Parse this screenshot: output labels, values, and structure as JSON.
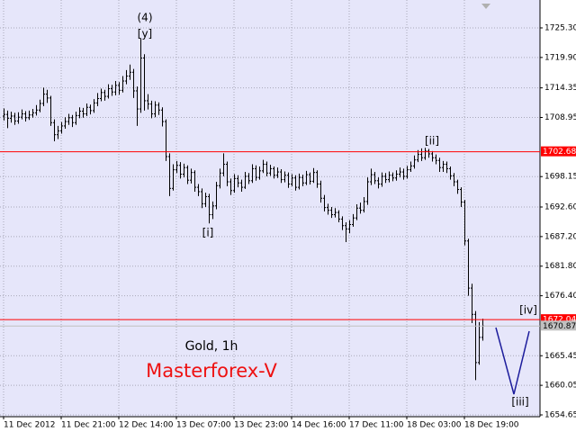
{
  "chart_data": {
    "type": "ohlc",
    "symbol_label": "Gold, 1h",
    "brand": "Masterforex-V",
    "annotations": [
      "(4)",
      "[y]",
      "[i]",
      "[ii]",
      "[iii]",
      "[iv]"
    ],
    "ylim": [
      1654.32,
      1730.39
    ],
    "yticks": [
      {
        "value": 1725.3,
        "label": "1725.30"
      },
      {
        "value": 1719.9,
        "label": "1719.90"
      },
      {
        "value": 1714.35,
        "label": "1714.35"
      },
      {
        "value": 1708.95,
        "label": "1708.95"
      },
      {
        "value": 1698.15,
        "label": "1698.15"
      },
      {
        "value": 1692.6,
        "label": "1692.60"
      },
      {
        "value": 1687.2,
        "label": "1687.20"
      },
      {
        "value": 1681.8,
        "label": "1681.80"
      },
      {
        "value": 1676.4,
        "label": "1676.40"
      },
      {
        "value": 1665.45,
        "label": "1665.45"
      },
      {
        "value": 1660.05,
        "label": "1660.05"
      },
      {
        "value": 1654.65,
        "label": "1654.65"
      }
    ],
    "grid": true,
    "color": "#000000",
    "price_lines": [
      {
        "value": 1702.68,
        "color": "#ff0000"
      },
      {
        "value": 1672.04,
        "color": "#ff0000"
      },
      {
        "value": 1670.87,
        "color": "#c0c0c0"
      }
    ],
    "categories": [
      "11 Dec 2012",
      null,
      null,
      null,
      null,
      null,
      null,
      null,
      null,
      null,
      null,
      null,
      null,
      null,
      null,
      null,
      "11 Dec 21:00",
      null,
      null,
      null,
      null,
      null,
      null,
      null,
      null,
      null,
      null,
      null,
      null,
      null,
      null,
      null,
      "12 Dec 14:00",
      null,
      null,
      null,
      null,
      null,
      null,
      null,
      null,
      null,
      null,
      null,
      null,
      null,
      null,
      null,
      "13 Dec 07:00",
      null,
      null,
      null,
      null,
      null,
      null,
      null,
      null,
      null,
      null,
      null,
      null,
      null,
      null,
      null,
      "13 Dec 23:00",
      null,
      null,
      null,
      null,
      null,
      null,
      null,
      null,
      null,
      null,
      null,
      null,
      null,
      null,
      null,
      "14 Dec 16:00",
      null,
      null,
      null,
      null,
      null,
      null,
      null,
      null,
      null,
      null,
      null,
      null,
      null,
      null,
      null,
      "17 Dec 11:00",
      null,
      null,
      null,
      null,
      null,
      null,
      null,
      null,
      null,
      null,
      null,
      null,
      null,
      null,
      null,
      "18 Dec 03:00",
      null,
      null,
      null,
      null,
      null,
      null,
      null,
      null,
      null,
      null,
      null,
      null,
      null,
      null,
      null,
      "18 Dec 19:00",
      null,
      null,
      null,
      null,
      null
    ],
    "open": [
      1709.2,
      1709.5,
      1708.8,
      1709.2,
      1708.3,
      1709.0,
      1709.6,
      1708.9,
      1709.4,
      1709.8,
      1710.3,
      1711.5,
      1713.2,
      1712.5,
      1708.0,
      1705.8,
      1706.5,
      1707.4,
      1708.2,
      1708.9,
      1708.0,
      1709.3,
      1710.1,
      1709.6,
      1710.8,
      1710.2,
      1711.6,
      1712.4,
      1713.5,
      1712.8,
      1714.2,
      1713.6,
      1714.8,
      1713.9,
      1715.6,
      1716.5,
      1717.2,
      1713.8,
      1710.5,
      1719.8,
      1712.0,
      1711.4,
      1709.6,
      1711.2,
      1710.3,
      1708.2,
      1701.8,
      1696.0,
      1699.4,
      1700.2,
      1698.6,
      1699.8,
      1697.5,
      1698.9,
      1696.2,
      1695.4,
      1693.2,
      1694.5,
      1691.2,
      1692.8,
      1696.5,
      1698.8,
      1700.4,
      1697.2,
      1695.6,
      1697.8,
      1697.0,
      1696.2,
      1698.2,
      1697.4,
      1699.6,
      1698.0,
      1699.2,
      1700.4,
      1698.8,
      1699.6,
      1698.4,
      1699.0,
      1697.6,
      1698.4,
      1696.8,
      1697.9,
      1696.2,
      1698.0,
      1697.0,
      1698.5,
      1697.3,
      1698.9,
      1696.8,
      1694.2,
      1692.5,
      1692.0,
      1691.2,
      1691.6,
      1690.4,
      1689.2,
      1688.6,
      1689.4,
      1690.6,
      1692.4,
      1692.0,
      1693.6,
      1697.2,
      1698.5,
      1697.4,
      1696.8,
      1698.2,
      1697.6,
      1698.4,
      1697.9,
      1698.6,
      1699.0,
      1698.2,
      1699.4,
      1700.1,
      1701.2,
      1702.2,
      1701.6,
      1702.8,
      1702.3,
      1701.6,
      1701.1,
      1699.8,
      1700.4,
      1699.6,
      1698.3,
      1697.2,
      1695.8,
      1693.5,
      1686.4,
      1677.8,
      1673.0,
      1664.2,
      1668.8
    ],
    "high": [
      1710.6,
      1710.2,
      1710.0,
      1709.8,
      1709.9,
      1710.4,
      1710.1,
      1710.2,
      1710.5,
      1711.2,
      1712.2,
      1714.4,
      1714.0,
      1712.9,
      1708.6,
      1707.4,
      1708.1,
      1709.0,
      1709.6,
      1709.4,
      1710.0,
      1710.8,
      1710.7,
      1711.5,
      1711.3,
      1712.3,
      1713.4,
      1714.2,
      1714.0,
      1715.0,
      1714.9,
      1715.6,
      1715.4,
      1716.5,
      1717.6,
      1718.6,
      1717.8,
      1714.6,
      1723.4,
      1720.5,
      1713.2,
      1712.0,
      1711.9,
      1711.7,
      1710.8,
      1708.6,
      1702.4,
      1700.4,
      1701.0,
      1700.8,
      1700.5,
      1700.2,
      1699.6,
      1699.3,
      1696.8,
      1696.0,
      1695.2,
      1695.0,
      1693.6,
      1697.2,
      1699.6,
      1702.4,
      1700.9,
      1697.8,
      1698.6,
      1698.4,
      1697.6,
      1699.0,
      1698.8,
      1700.4,
      1700.2,
      1700.0,
      1701.2,
      1700.9,
      1700.3,
      1700.0,
      1699.8,
      1699.5,
      1699.1,
      1698.9,
      1698.6,
      1698.4,
      1698.7,
      1698.5,
      1699.2,
      1698.9,
      1699.7,
      1699.3,
      1697.4,
      1694.8,
      1693.2,
      1692.6,
      1692.4,
      1692.0,
      1690.9,
      1689.8,
      1690.2,
      1691.3,
      1693.1,
      1693.4,
      1694.4,
      1698.0,
      1699.6,
      1699.0,
      1698.0,
      1698.9,
      1698.8,
      1699.1,
      1698.9,
      1699.3,
      1699.8,
      1699.6,
      1700.1,
      1700.9,
      1702.0,
      1703.0,
      1703.3,
      1703.4,
      1703.2,
      1702.8,
      1702.2,
      1701.6,
      1701.0,
      1700.9,
      1700.0,
      1698.8,
      1697.6,
      1696.2,
      1693.9,
      1686.8,
      1678.6,
      1673.6,
      1671.6,
      1672.2
    ],
    "low": [
      1708.4,
      1707.0,
      1708.0,
      1707.6,
      1707.8,
      1708.6,
      1708.2,
      1708.5,
      1708.9,
      1709.3,
      1709.9,
      1711.0,
      1711.6,
      1707.4,
      1704.6,
      1705.0,
      1706.0,
      1706.9,
      1707.6,
      1707.2,
      1707.6,
      1708.8,
      1708.9,
      1709.2,
      1709.5,
      1709.8,
      1711.0,
      1711.9,
      1712.0,
      1712.4,
      1712.9,
      1713.0,
      1713.1,
      1713.5,
      1715.0,
      1715.8,
      1712.5,
      1707.4,
      1709.8,
      1710.2,
      1710.4,
      1708.8,
      1709.0,
      1709.4,
      1707.3,
      1701.0,
      1694.6,
      1695.6,
      1698.8,
      1697.8,
      1698.0,
      1696.8,
      1696.9,
      1695.4,
      1694.6,
      1692.4,
      1692.6,
      1689.6,
      1690.4,
      1692.2,
      1696.0,
      1698.2,
      1696.4,
      1694.8,
      1695.2,
      1696.2,
      1695.4,
      1695.9,
      1696.8,
      1697.0,
      1697.4,
      1697.6,
      1698.8,
      1698.2,
      1698.3,
      1697.8,
      1697.9,
      1697.0,
      1697.1,
      1696.1,
      1696.4,
      1695.6,
      1695.8,
      1696.4,
      1696.6,
      1696.7,
      1697.0,
      1696.1,
      1693.4,
      1691.8,
      1691.2,
      1690.6,
      1690.7,
      1689.8,
      1688.4,
      1686.2,
      1687.8,
      1689.0,
      1690.2,
      1691.4,
      1691.6,
      1693.0,
      1696.6,
      1696.8,
      1696.0,
      1696.3,
      1697.0,
      1697.1,
      1697.3,
      1697.4,
      1698.0,
      1697.6,
      1697.8,
      1699.0,
      1699.6,
      1700.8,
      1701.0,
      1701.2,
      1701.6,
      1700.9,
      1700.4,
      1699.0,
      1699.0,
      1698.8,
      1697.6,
      1696.4,
      1695.0,
      1692.6,
      1685.6,
      1676.4,
      1671.4,
      1661.0,
      1663.8,
      1668.2
    ],
    "close": [
      1709.5,
      1708.8,
      1709.2,
      1708.3,
      1709.0,
      1709.6,
      1708.9,
      1709.4,
      1709.8,
      1710.3,
      1711.5,
      1713.2,
      1712.5,
      1708.0,
      1705.8,
      1706.5,
      1707.4,
      1708.2,
      1708.9,
      1708.0,
      1709.3,
      1710.1,
      1709.6,
      1710.8,
      1710.2,
      1711.6,
      1712.4,
      1713.5,
      1712.8,
      1714.2,
      1713.6,
      1714.8,
      1713.9,
      1715.6,
      1716.5,
      1717.2,
      1713.8,
      1710.5,
      1719.8,
      1712.0,
      1711.4,
      1709.6,
      1711.2,
      1710.3,
      1708.2,
      1701.8,
      1696.0,
      1699.4,
      1700.2,
      1698.6,
      1699.8,
      1697.5,
      1698.9,
      1696.2,
      1695.4,
      1693.2,
      1694.5,
      1691.2,
      1692.8,
      1696.5,
      1698.8,
      1700.4,
      1697.2,
      1695.6,
      1697.8,
      1697.0,
      1696.2,
      1698.2,
      1697.4,
      1699.6,
      1698.0,
      1699.2,
      1700.4,
      1698.8,
      1699.6,
      1698.4,
      1699.0,
      1697.6,
      1698.4,
      1696.8,
      1697.9,
      1696.2,
      1698.0,
      1697.0,
      1698.5,
      1697.3,
      1698.9,
      1696.8,
      1694.2,
      1692.5,
      1692.0,
      1691.2,
      1691.6,
      1690.4,
      1689.2,
      1688.6,
      1689.4,
      1690.6,
      1692.4,
      1692.0,
      1693.6,
      1697.2,
      1698.5,
      1697.4,
      1696.8,
      1698.2,
      1697.6,
      1698.4,
      1697.9,
      1698.6,
      1699.0,
      1698.2,
      1699.4,
      1700.1,
      1701.2,
      1702.2,
      1701.6,
      1702.8,
      1702.3,
      1701.6,
      1701.1,
      1699.8,
      1700.4,
      1699.6,
      1698.3,
      1697.2,
      1695.8,
      1693.5,
      1686.4,
      1677.8,
      1673.0,
      1664.2,
      1668.8,
      1670.9
    ]
  }
}
